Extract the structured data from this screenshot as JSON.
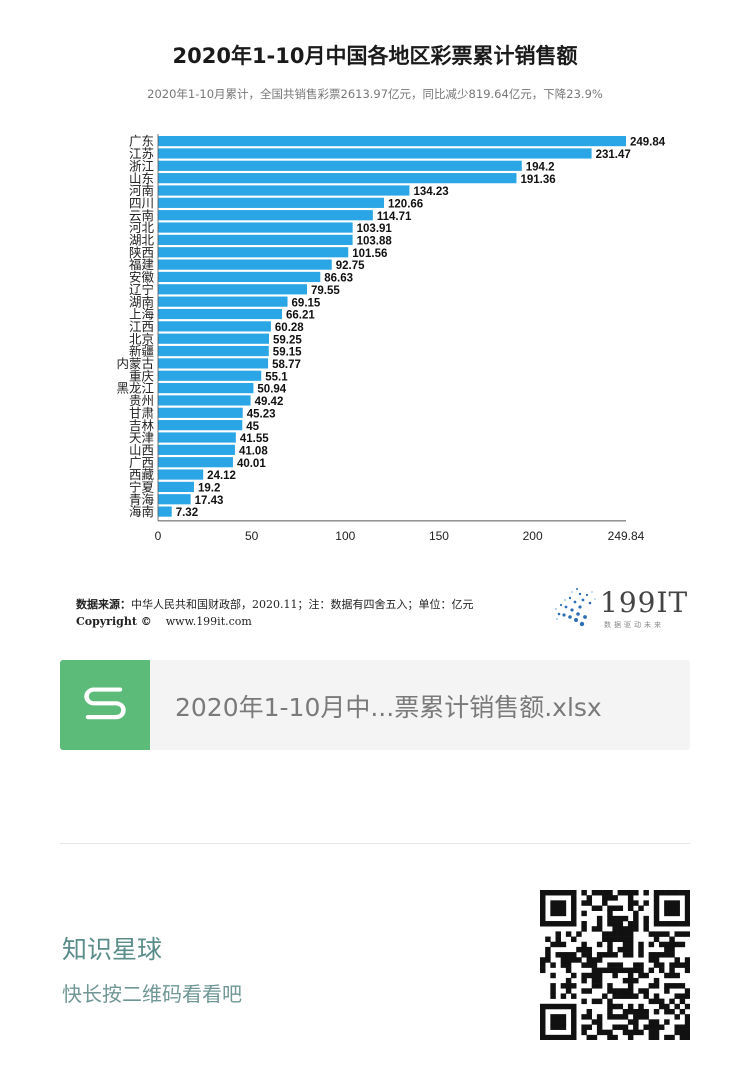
{
  "header": {
    "title": "2020年1-10月中国各地区彩票累计销售额",
    "subtitle": "2020年1-10月累计，全国共销售彩票2613.97亿元，同比减少819.64亿元，下降23.9%"
  },
  "chart_data": {
    "type": "bar",
    "orientation": "horizontal",
    "title": "2020年1-10月中国各地区彩票累计销售额",
    "xlabel": "",
    "ylabel": "",
    "xlim": [
      0,
      249.84
    ],
    "x_ticks": [
      "0",
      "50",
      "100",
      "150",
      "200",
      "249.84"
    ],
    "grid": false,
    "bar_color": "#2aa6e6",
    "categories": [
      "广东",
      "江苏",
      "浙江",
      "山东",
      "河南",
      "四川",
      "云南",
      "河北",
      "湖北",
      "陕西",
      "福建",
      "安徽",
      "辽宁",
      "湖南",
      "上海",
      "江西",
      "北京",
      "新疆",
      "内蒙古",
      "重庆",
      "黑龙江",
      "贵州",
      "甘肃",
      "吉林",
      "天津",
      "山西",
      "广西",
      "西藏",
      "宁夏",
      "青海",
      "海南"
    ],
    "values": [
      249.84,
      231.47,
      194.2,
      191.36,
      134.23,
      120.66,
      114.71,
      103.91,
      103.88,
      101.56,
      92.75,
      86.63,
      79.55,
      69.15,
      66.21,
      60.28,
      59.25,
      59.15,
      58.77,
      55.1,
      50.94,
      49.42,
      45.23,
      45,
      41.55,
      41.08,
      40.01,
      24.12,
      19.2,
      17.43,
      7.32
    ],
    "value_labels": [
      "249.84",
      "231.47",
      "194.2",
      "191.36",
      "134.23",
      "120.66",
      "114.71",
      "103.91",
      "103.88",
      "101.56",
      "92.75",
      "86.63",
      "79.55",
      "69.15",
      "66.21",
      "60.28",
      "59.25",
      "59.15",
      "58.77",
      "55.1",
      "50.94",
      "49.42",
      "45.23",
      "45",
      "41.55",
      "41.08",
      "40.01",
      "24.12",
      "19.2",
      "17.43",
      "7.32"
    ]
  },
  "footer": {
    "source_label": "数据来源：",
    "source_text": "中华人民共和国财政部，2020.11；注：数据有四舍五入；单位：亿元",
    "copyright": "Copyright ©",
    "website": "www.199it.com",
    "brand_logo_text": "199IT",
    "brand_slogan": "数据驱动未来",
    "logo_icon": "dandelion-dots-icon"
  },
  "attachment": {
    "file_name": "2020年1-10月中...票累计销售额.xlsx",
    "icon": "spreadsheet-s-icon",
    "icon_color": "#5dbb7a"
  },
  "promo": {
    "title": "知识星球",
    "subtitle": "快长按二维码看看吧",
    "qr_icon": "qr-code-icon"
  }
}
